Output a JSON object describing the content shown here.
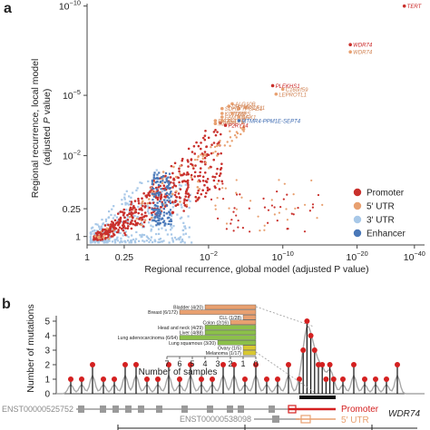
{
  "chart_data": [
    {
      "panel": "a",
      "type": "scatter",
      "xlabel": "Regional recurrence, global model (adjusted P value)",
      "ylabel": "Regional recurrence, local model (adjusted P value)",
      "x_ticks": [
        "1",
        "0.25",
        "10^-2",
        "10^-10",
        "10^-20",
        "10^-40"
      ],
      "y_ticks": [
        "10^-10",
        "10^-5",
        "10^-2",
        "0.25",
        "1"
      ],
      "y_top_tick": "10^-10",
      "legend": [
        {
          "name": "Promoter",
          "color": "#c9302c"
        },
        {
          "name": "5′ UTR",
          "color": "#e8a070"
        },
        {
          "name": "3′ UTR",
          "color": "#a8c8e8"
        },
        {
          "name": "Enhancer",
          "color": "#4a78b8"
        }
      ],
      "legend_position": "bottom-right",
      "labeled_points": [
        {
          "label": "TERT",
          "x": 0.94,
          "y": 0.99,
          "cat": "Promoter",
          "tx": "left"
        },
        {
          "label": "WDR74",
          "x": 0.78,
          "y": 0.83,
          "cat": "Promoter",
          "tx": "left"
        },
        {
          "label": "WDR74",
          "x": 0.78,
          "y": 0.8,
          "cat": "5′ UTR",
          "tx": "left"
        },
        {
          "label": "PLEKHS1",
          "x": 0.55,
          "y": 0.66,
          "cat": "Promoter",
          "tx": "left"
        },
        {
          "label": "C16orf59",
          "x": 0.58,
          "y": 0.645,
          "cat": "5′ UTR",
          "tx": "left"
        },
        {
          "label": "LEPROTL1",
          "x": 0.56,
          "y": 0.625,
          "cat": "5′ UTR",
          "tx": "left"
        },
        {
          "label": "PCF11",
          "x": 0.47,
          "y": 0.57,
          "cat": "5′ UTR",
          "tx": "left"
        },
        {
          "label": "TPSAB1",
          "x": 0.45,
          "y": 0.565,
          "cat": "5′ UTR",
          "tx": "left"
        },
        {
          "label": "ALG10B",
          "x": 0.43,
          "y": 0.585,
          "cat": "5′ UTR",
          "tx": "left"
        },
        {
          "label": "DHX16",
          "x": 0.42,
          "y": 0.575,
          "cat": "5′ UTR",
          "tx": "left"
        },
        {
          "label": "SDHD",
          "x": 0.4,
          "y": 0.565,
          "cat": "5′ UTR",
          "tx": "left"
        },
        {
          "label": "KCTD10",
          "x": 0.4,
          "y": 0.545,
          "cat": "5′ UTR",
          "tx": "left"
        },
        {
          "label": "UMPS",
          "x": 0.43,
          "y": 0.545,
          "cat": "5′ UTR",
          "tx": "left"
        },
        {
          "label": "FAM104A",
          "x": 0.4,
          "y": 0.53,
          "cat": "5′ UTR",
          "tx": "left"
        },
        {
          "label": "SGK1",
          "x": 0.45,
          "y": 0.53,
          "cat": "5′ UTR",
          "tx": "left"
        },
        {
          "label": "EIF4A2",
          "x": 0.38,
          "y": 0.515,
          "cat": "5′ UTR",
          "tx": "left"
        },
        {
          "label": "DNAJA1",
          "x": 0.4,
          "y": 0.515,
          "cat": "5′ UTR",
          "tx": "left"
        },
        {
          "label": "MARF1",
          "x": 0.38,
          "y": 0.503,
          "cat": "5′ UTR",
          "tx": "left"
        },
        {
          "label": "MTMR4-PPM1E-SEPT4",
          "x": 0.45,
          "y": 0.515,
          "cat": "Enhancer",
          "tx": "left"
        },
        {
          "label": "P2RY14",
          "x": 0.41,
          "y": 0.496,
          "cat": "Promoter",
          "tx": "left"
        }
      ]
    },
    {
      "panel": "b",
      "type": "bar",
      "xlabel": "Number of samples",
      "ylabel": "Number of mutations",
      "x_ticks": [
        "7",
        "6",
        "5",
        "4",
        "3",
        "2",
        "1",
        "0"
      ],
      "y_ticks": [
        "0",
        "1",
        "2",
        "3",
        "4",
        "5"
      ],
      "categories": [
        "Bladder (4/20)",
        "Breast (6/172)",
        "CLL (1/28)",
        "Colon (2/16)",
        "Head and neck (4/29)",
        "Liver (4/88)",
        "Lung adenocarcinoma (6/64)",
        "Lung squamous (3/20)",
        "Ovary (1/5)",
        "Melanoma (1/17)"
      ],
      "values": [
        4,
        6,
        1,
        2,
        4,
        4,
        6,
        3,
        1,
        1
      ],
      "bar_colors": [
        "#e8a070",
        "#e8a070",
        "#e8a070",
        "#e8a070",
        "#8cc04a",
        "#8cc04a",
        "#8cc04a",
        "#8cc04a",
        "#d8c830",
        "#d8c830"
      ],
      "lollipop_heights": [
        1,
        1,
        2,
        1,
        1,
        2,
        2,
        1,
        1,
        2,
        1,
        2,
        1,
        1,
        2,
        2,
        1,
        2,
        1,
        1,
        2,
        1,
        3,
        5,
        4,
        3,
        2,
        2,
        1,
        2,
        1,
        1,
        2,
        1,
        1,
        1,
        2
      ],
      "tracks": {
        "transcript_1": "ENST00000525752",
        "transcript_2": "ENST00000538098",
        "gene": "WDR74",
        "promoter_label": "Promoter",
        "utr_label": "5′ UTR"
      }
    }
  ],
  "panel_labels": {
    "a": "a",
    "b": "b"
  },
  "colors": {
    "promoter": "#c9302c",
    "utr5": "#e8a070",
    "utr3": "#a8c8e8",
    "enhancer": "#4a78b8",
    "grey": "#9a9a9a",
    "highlight": "#d42020"
  }
}
